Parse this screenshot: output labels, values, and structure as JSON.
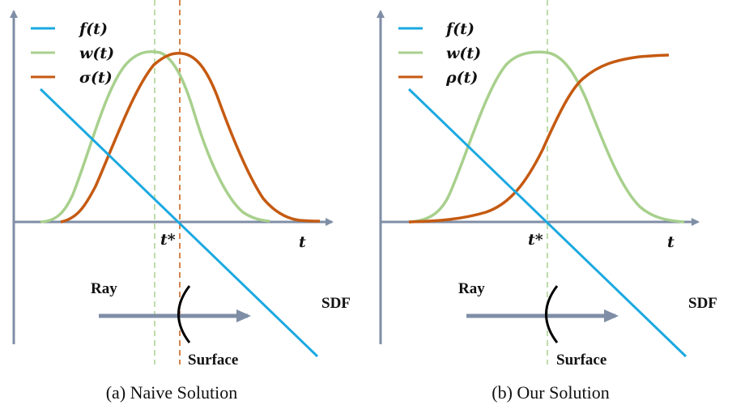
{
  "colors": {
    "axis": "#7f8ea6",
    "f": "#1ba9e1",
    "w": "#a8d08d",
    "sigma": "#c55a11",
    "ray": "#7f8ea6",
    "guide_green": "#a8d08d",
    "guide_orange": "#c55a11"
  },
  "panels": [
    {
      "caption": "(a) Naive Solution",
      "legend": {
        "f": "f(t)",
        "w": "w(t)",
        "third": "σ(t)"
      },
      "axis_t": "t",
      "t_star": "t*",
      "ray": "Ray",
      "sdf": "SDF",
      "surface": "Surface"
    },
    {
      "caption": "(b) Our Solution",
      "legend": {
        "f": "f(t)",
        "w": "w(t)",
        "third": "ρ(t)"
      },
      "axis_t": "t",
      "t_star": "t*",
      "ray": "Ray",
      "sdf": "SDF",
      "surface": "Surface"
    }
  ]
}
